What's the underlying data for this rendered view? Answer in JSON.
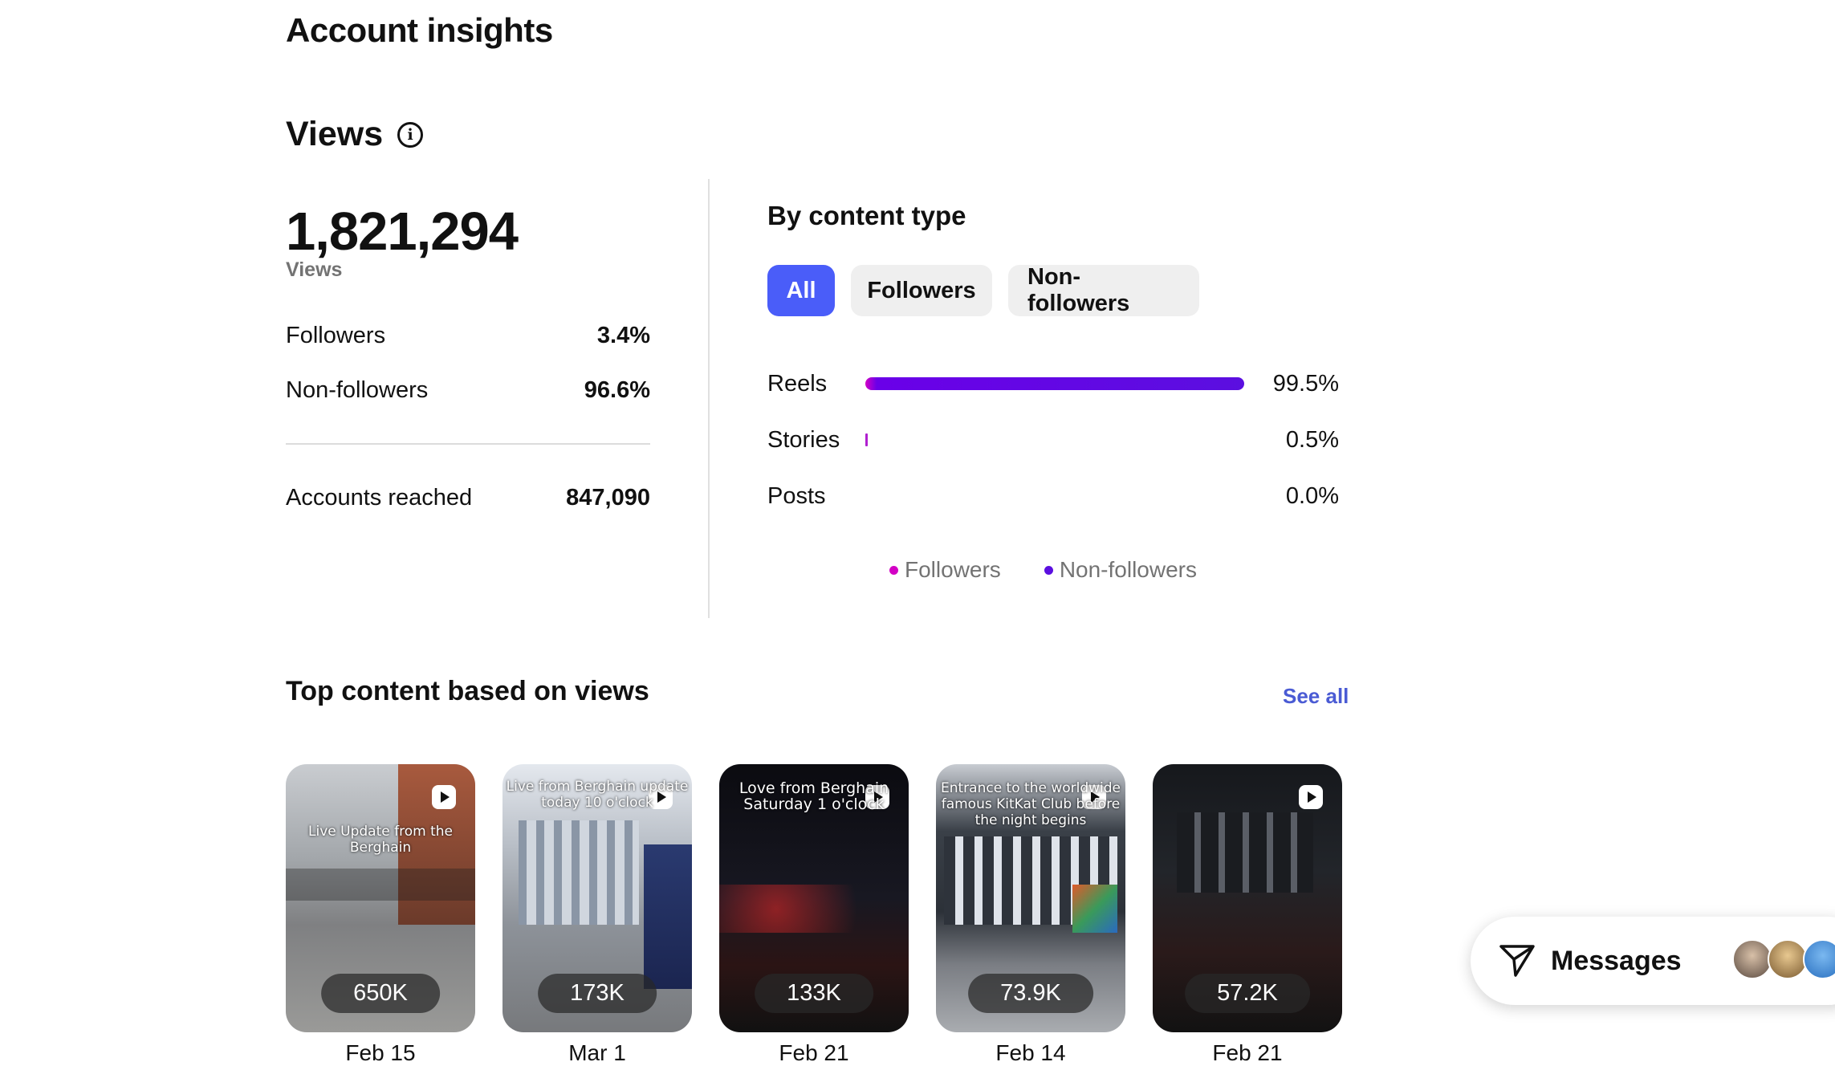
{
  "page": {
    "title": "Account insights"
  },
  "views": {
    "title": "Views",
    "total": "1,821,294",
    "total_label": "Views",
    "followers_label": "Followers",
    "followers_pct": "3.4%",
    "nonfollowers_label": "Non-followers",
    "nonfollowers_pct": "96.6%",
    "reached_label": "Accounts reached",
    "reached_value": "847,090"
  },
  "by_content_type": {
    "title": "By content type",
    "tabs": [
      {
        "label": "All",
        "active": true
      },
      {
        "label": "Followers",
        "active": false
      },
      {
        "label": "Non-followers",
        "active": false
      }
    ],
    "rows": [
      {
        "label": "Reels",
        "pct": "99.5%",
        "value": 99.5
      },
      {
        "label": "Stories",
        "pct": "0.5%",
        "value": 0.5
      },
      {
        "label": "Posts",
        "pct": "0.0%",
        "value": 0.0
      }
    ],
    "legend": [
      {
        "label": "Followers",
        "color": "#d300c5"
      },
      {
        "label": "Non-followers",
        "color": "#5b0fe0"
      }
    ]
  },
  "top_content": {
    "title": "Top content based on views",
    "see_all": "See all",
    "items": [
      {
        "views": "650K",
        "date": "Feb 15",
        "overlay": "Live Update from the Berghain"
      },
      {
        "views": "173K",
        "date": "Mar 1",
        "overlay": "Live from Berghain update today 10 o'clock"
      },
      {
        "views": "133K",
        "date": "Feb 21",
        "overlay": "Love from Berghain Saturday 1 o'clock"
      },
      {
        "views": "73.9K",
        "date": "Feb 14",
        "overlay": "Entrance to the worldwide famous KitKat Club before the night begins"
      },
      {
        "views": "57.2K",
        "date": "Feb 21",
        "overlay": ""
      }
    ]
  },
  "messages": {
    "label": "Messages"
  },
  "colors": {
    "accent": "#4a5df9",
    "link": "#4a5bd4"
  }
}
